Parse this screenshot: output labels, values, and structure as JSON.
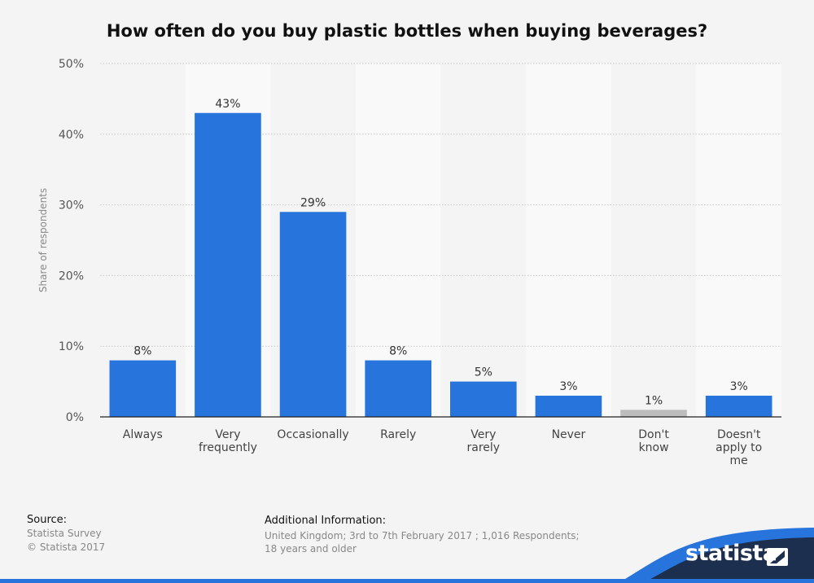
{
  "title": "How often do you buy plastic bottles when buying beverages?",
  "chart_data": {
    "type": "bar",
    "title": "How often do you buy plastic bottles when buying beverages?",
    "ylabel": "Share of respondents",
    "xlabel": "",
    "ylim": [
      0,
      50
    ],
    "yticks": [
      0,
      10,
      20,
      30,
      40,
      50
    ],
    "ytick_labels": [
      "0%",
      "10%",
      "20%",
      "30%",
      "40%",
      "50%"
    ],
    "categories": [
      [
        "Always"
      ],
      [
        "Very",
        "frequently"
      ],
      [
        "Occasionally"
      ],
      [
        "Rarely"
      ],
      [
        "Very",
        "rarely"
      ],
      [
        "Never"
      ],
      [
        "Don't",
        "know"
      ],
      [
        "Doesn't",
        "apply to",
        "me"
      ]
    ],
    "values": [
      8,
      43,
      29,
      8,
      5,
      3,
      1,
      3
    ],
    "value_labels": [
      "8%",
      "43%",
      "29%",
      "8%",
      "5%",
      "3%",
      "1%",
      "3%"
    ],
    "bar_colors": [
      "#2775dc",
      "#2775dc",
      "#2775dc",
      "#2775dc",
      "#2775dc",
      "#2775dc",
      "#bdbdbd",
      "#2775dc"
    ],
    "grid": true,
    "legend": "none"
  },
  "source": {
    "heading": "Source:",
    "lines": [
      "Statista Survey",
      "© Statista 2017"
    ]
  },
  "additional_info": {
    "heading": "Additional Information:",
    "lines": [
      "United Kingdom; 3rd to 7th February 2017 ; 1,016 Respondents;",
      "18 years and older"
    ]
  },
  "brand": {
    "name": "statista",
    "color": "#1c2f4f",
    "accent": "#2775dc"
  }
}
